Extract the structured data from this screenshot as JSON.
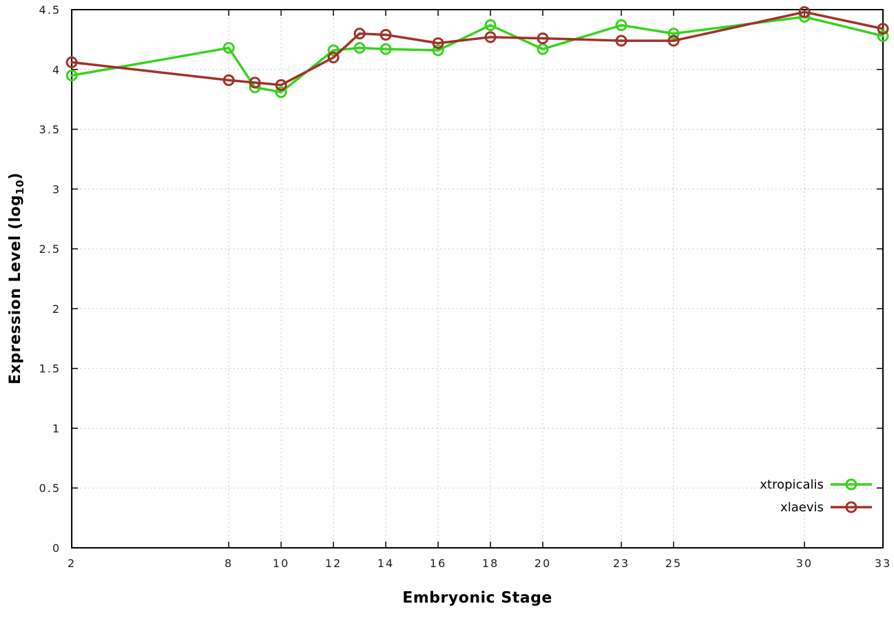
{
  "chart_data": {
    "type": "line",
    "title": "",
    "xlabel": "Embryonic Stage",
    "ylabel": "Expression Level (log10)",
    "ylabel_parts": {
      "pre": "Expression Level (log",
      "sub": "10",
      "post": ")"
    },
    "xlim": [
      2,
      33
    ],
    "ylim": [
      0,
      4.5
    ],
    "grid": true,
    "legend_position": "bottom-right-inside",
    "x": [
      2,
      8,
      9,
      10,
      12,
      13,
      14,
      16,
      18,
      20,
      23,
      25,
      30,
      33
    ],
    "x_tick_values": [
      2,
      8,
      10,
      12,
      14,
      16,
      18,
      20,
      23,
      25,
      30,
      33
    ],
    "x_tick_labels": [
      "2",
      "8",
      "10",
      "12",
      "14",
      "16",
      "18",
      "20",
      "23",
      "25",
      "30",
      "33"
    ],
    "y_tick_values": [
      0,
      0.5,
      1,
      1.5,
      2,
      2.5,
      3,
      3.5,
      4,
      4.5
    ],
    "y_tick_labels": [
      "0",
      "0.5",
      "1",
      "1.5",
      "2",
      "2.5",
      "3",
      "3.5",
      "4",
      "4.5"
    ],
    "series": [
      {
        "name": "xtropicalis",
        "color": "#35d41c",
        "values": [
          3.95,
          4.18,
          3.85,
          3.81,
          4.16,
          4.18,
          4.17,
          4.16,
          4.37,
          4.17,
          4.37,
          4.3,
          4.44,
          4.28
        ]
      },
      {
        "name": "xlaevis",
        "color": "#a0322a",
        "values": [
          4.06,
          3.91,
          3.89,
          3.87,
          4.1,
          4.3,
          4.29,
          4.22,
          4.27,
          4.26,
          4.24,
          4.24,
          4.48,
          4.34
        ]
      }
    ],
    "colors": {
      "grid": "#c9c9c9",
      "axis": "#000000",
      "tick_text": "#1c1c1c"
    }
  }
}
